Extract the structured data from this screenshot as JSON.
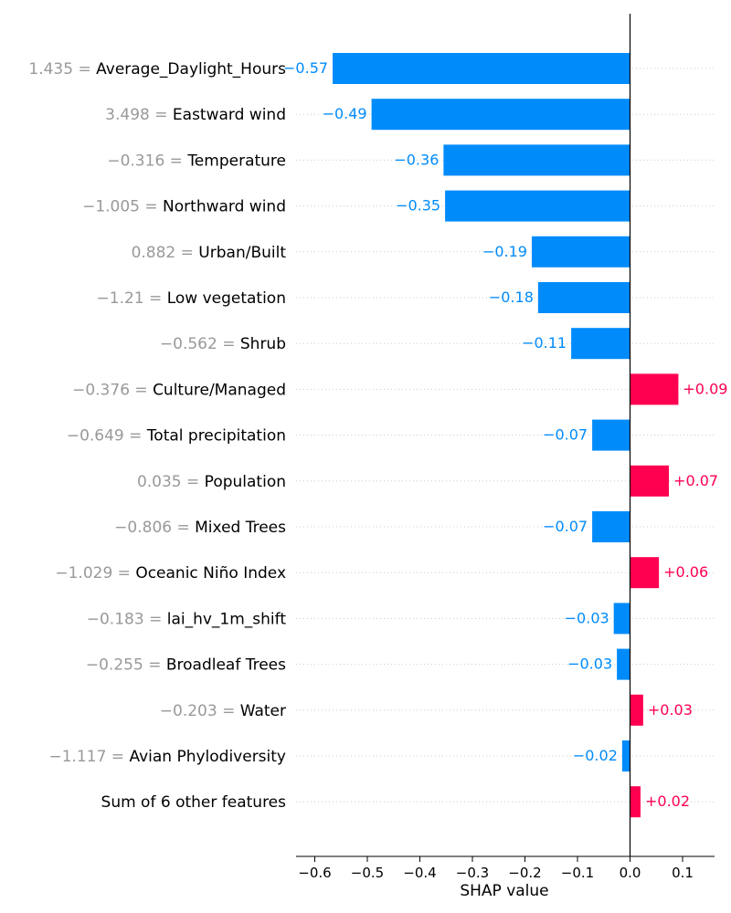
{
  "colors": {
    "negative": "#008bfb",
    "positive": "#ff0051",
    "feature_value": "#999999",
    "feature_name": "#000000",
    "axis": "#000000",
    "gridline": "#cccccc"
  },
  "chart_data": {
    "type": "bar",
    "orientation": "horizontal",
    "xlabel": "SHAP value",
    "xlim": [
      -0.635,
      0.16
    ],
    "xticks": [
      -0.6,
      -0.5,
      -0.4,
      -0.3,
      -0.2,
      -0.1,
      0.0,
      0.1
    ],
    "xtick_labels": [
      "−0.6",
      "−0.5",
      "−0.4",
      "−0.3",
      "−0.2",
      "−0.1",
      "0.0",
      "0.1"
    ],
    "baseline": 0,
    "grid": "dotted horizontal lines at each row",
    "features": [
      {
        "value_text": "1.435",
        "name": "Average_Daylight_Hours",
        "shap": -0.566,
        "label": "−0.57"
      },
      {
        "value_text": "3.498",
        "name": "Eastward wind",
        "shap": -0.492,
        "label": "−0.49"
      },
      {
        "value_text": "−0.316",
        "name": "Temperature",
        "shap": -0.355,
        "label": "−0.36"
      },
      {
        "value_text": "−1.005",
        "name": "Northward wind",
        "shap": -0.352,
        "label": "−0.35"
      },
      {
        "value_text": "0.882",
        "name": "Urban/Built",
        "shap": -0.187,
        "label": "−0.19"
      },
      {
        "value_text": "−1.21",
        "name": "Low vegetation",
        "shap": -0.175,
        "label": "−0.18"
      },
      {
        "value_text": "−0.562",
        "name": "Shrub",
        "shap": -0.112,
        "label": "−0.11"
      },
      {
        "value_text": "−0.376",
        "name": "Culture/Managed",
        "shap": 0.092,
        "label": "+0.09"
      },
      {
        "value_text": "−0.649",
        "name": "Total precipitation",
        "shap": -0.072,
        "label": "−0.07"
      },
      {
        "value_text": "0.035",
        "name": "Population",
        "shap": 0.074,
        "label": "+0.07"
      },
      {
        "value_text": "−0.806",
        "name": "Mixed Trees",
        "shap": -0.072,
        "label": "−0.07"
      },
      {
        "value_text": "−1.029",
        "name": "Oceanic Niño Index",
        "shap": 0.055,
        "label": "+0.06"
      },
      {
        "value_text": "−0.183",
        "name": "lai_hv_1m_shift",
        "shap": -0.031,
        "label": "−0.03"
      },
      {
        "value_text": "−0.255",
        "name": "Broadleaf Trees",
        "shap": -0.025,
        "label": "−0.03"
      },
      {
        "value_text": "−0.203",
        "name": "Water",
        "shap": 0.025,
        "label": "+0.03"
      },
      {
        "value_text": "−1.117",
        "name": "Avian Phylodiversity",
        "shap": -0.015,
        "label": "−0.02"
      },
      {
        "value_text": "",
        "name": "Sum of 6 other features",
        "shap": 0.02,
        "label": "+0.02"
      }
    ]
  }
}
